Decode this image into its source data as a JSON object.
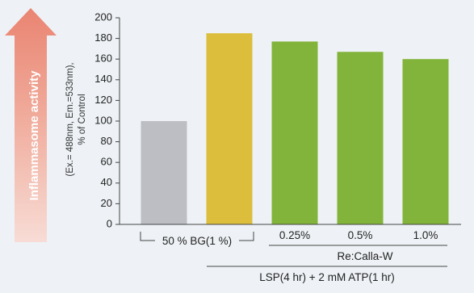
{
  "side_label": "Inflammasome activity",
  "chart_data": {
    "type": "bar",
    "ylabel_lines": [
      "(Ex.= 488nm, Em.=533nm),",
      "% of Control"
    ],
    "ylim": [
      0,
      200
    ],
    "yticks": [
      0,
      20,
      40,
      60,
      80,
      100,
      120,
      140,
      160,
      180,
      200
    ],
    "grid": false,
    "categories": [
      "",
      "",
      "0.25%",
      "0.5%",
      "1.0%"
    ],
    "values": [
      100,
      185,
      177,
      167,
      160
    ],
    "colors": [
      "#bdbec3",
      "#dcbd3c",
      "#82b43b",
      "#82b43b",
      "#82b43b"
    ],
    "group_labels": {
      "bg": "50 % BG(1 %)",
      "recalla": "Re:Calla-W",
      "treatment": "LSP(4 hr) + 2 mM ATP(1 hr)"
    }
  }
}
